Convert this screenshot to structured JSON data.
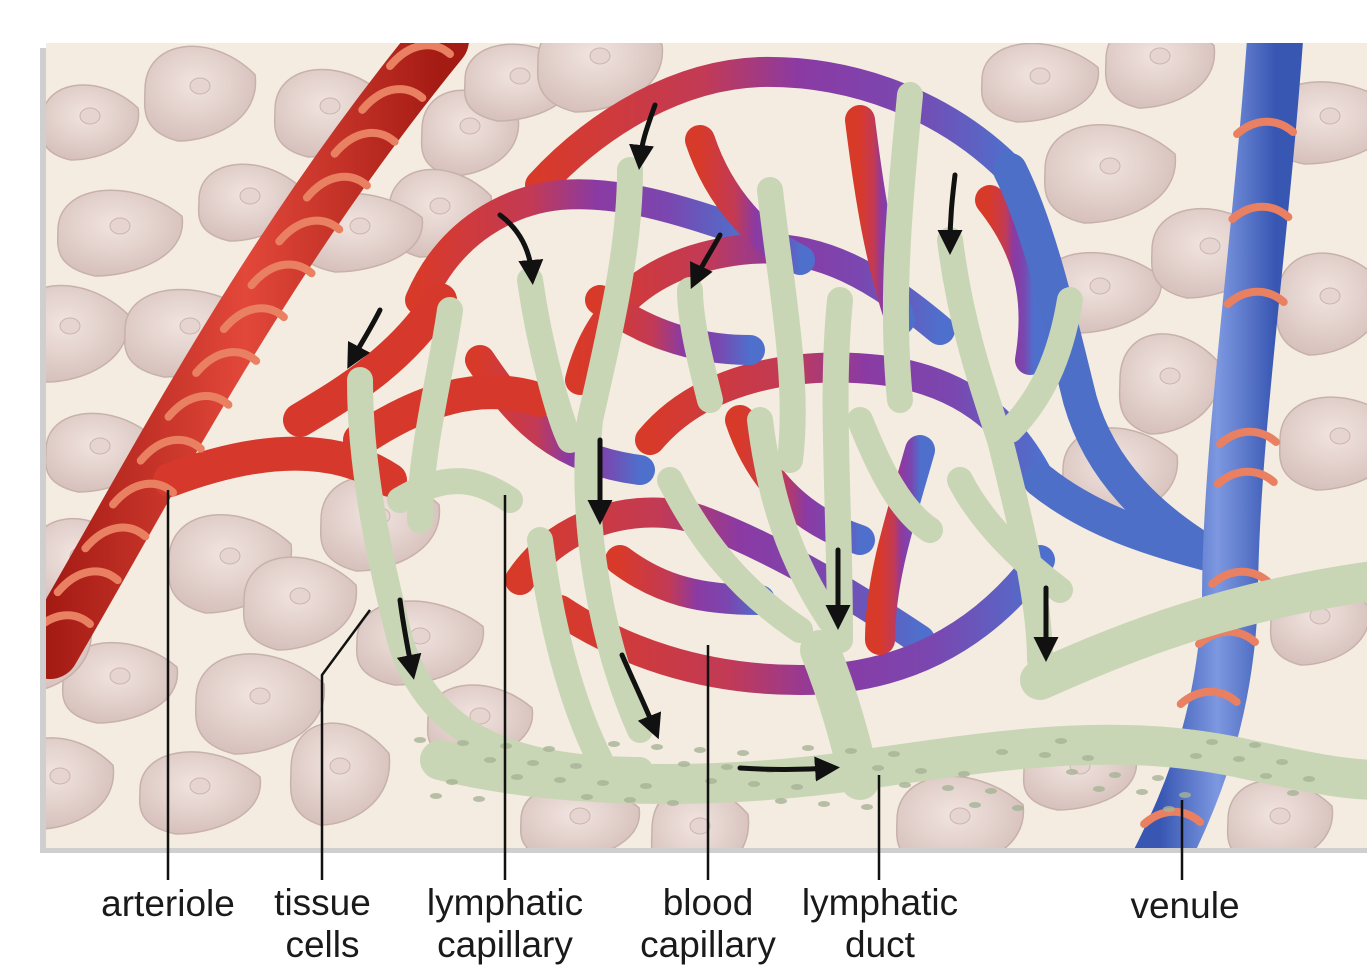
{
  "colors": {
    "background": "#f4ece0",
    "tissue_cell": "#ddc9c4",
    "arteriole": "#d42f22",
    "capillary_mid": "#8a3aa0",
    "venule": "#4d6fc8",
    "lymphatic": "#c9d6b5",
    "muscle_ring": "#e98062",
    "arrow": "#111111"
  },
  "labels": {
    "arteriole": "arteriole",
    "tissue_1": "tissue",
    "tissue_2": "cells",
    "lymph_cap_1": "lymphatic",
    "lymph_cap_2": "capillary",
    "blood_cap_1": "blood",
    "blood_cap_2": "capillary",
    "lymph_duct_1": "lymphatic",
    "lymph_duct_2": "duct",
    "venule": "venule"
  }
}
